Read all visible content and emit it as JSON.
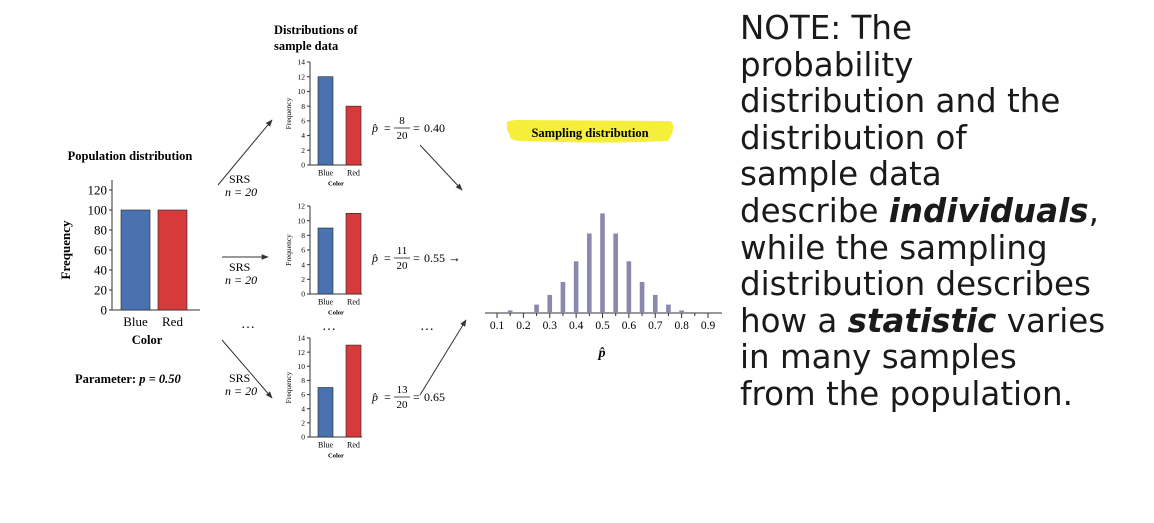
{
  "colors": {
    "blue": "#4a72b0",
    "red": "#d63a3a",
    "sampling": "#8a88ad",
    "highlight": "#f5ee3a",
    "axis": "#333333"
  },
  "population": {
    "title": "Population distribution",
    "ylabel": "Frequency",
    "xlabel": "Color",
    "parameter_label": "Parameter: ",
    "parameter_value": "p = 0.50"
  },
  "samples": {
    "title_line1": "Distributions of",
    "title_line2": "sample data",
    "srs_label": "SRS",
    "n_label": "n = 20",
    "ellipsis": "…",
    "phat_symbol": "p̂",
    "items": [
      {
        "num": "8",
        "den": "20",
        "result": "0.40",
        "arrow": ""
      },
      {
        "num": "11",
        "den": "20",
        "result": "0.55",
        "arrow": "→"
      },
      {
        "num": "13",
        "den": "20",
        "result": "0.65",
        "arrow": ""
      }
    ]
  },
  "sampling": {
    "title": "Sampling distribution",
    "xlabel": "p̂"
  },
  "chart_data": [
    {
      "type": "bar",
      "title": "Population distribution",
      "xlabel": "Color",
      "ylabel": "Frequency",
      "categories": [
        "Blue",
        "Red"
      ],
      "values": [
        100,
        100
      ],
      "ylim": [
        0,
        130
      ],
      "yticks": [
        "0",
        "20",
        "40",
        "60",
        "80",
        "100",
        "120"
      ]
    },
    {
      "type": "bar",
      "xlabel": "Color",
      "ylabel": "Frequency",
      "categories": [
        "Blue",
        "Red"
      ],
      "values": [
        12,
        8
      ],
      "ylim": [
        0,
        14
      ],
      "yticks": [
        "0",
        "2",
        "4",
        "6",
        "8",
        "10",
        "12",
        "14"
      ]
    },
    {
      "type": "bar",
      "xlabel": "Color",
      "ylabel": "Frequency",
      "categories": [
        "Blue",
        "Red"
      ],
      "values": [
        9,
        11
      ],
      "ylim": [
        0,
        12
      ],
      "yticks": [
        "0",
        "2",
        "4",
        "6",
        "8",
        "10",
        "12"
      ]
    },
    {
      "type": "bar",
      "xlabel": "Color",
      "ylabel": "Frequency",
      "categories": [
        "Blue",
        "Red"
      ],
      "values": [
        7,
        13
      ],
      "ylim": [
        0,
        14
      ],
      "yticks": [
        "0",
        "2",
        "4",
        "6",
        "8",
        "10",
        "12",
        "14"
      ]
    },
    {
      "type": "bar",
      "title": "Sampling distribution",
      "xlabel": "p̂",
      "x": [
        0.15,
        0.25,
        0.3,
        0.35,
        0.4,
        0.45,
        0.5,
        0.55,
        0.6,
        0.65,
        0.7,
        0.75,
        0.8
      ],
      "values": [
        0.4,
        1.3,
        2.8,
        4.8,
        8.0,
        12.3,
        15.4,
        12.3,
        8.0,
        4.8,
        2.8,
        1.3,
        0.4
      ],
      "xticks": [
        "0.1",
        "0.2",
        "0.3",
        "0.4",
        "0.5",
        "0.6",
        "0.7",
        "0.8",
        "0.9"
      ]
    }
  ],
  "note": {
    "lines": [
      [
        {
          "t": "NOTE:  The",
          "em": false
        }
      ],
      [
        {
          "t": "probability",
          "em": false
        }
      ],
      [
        {
          "t": "distribution and the",
          "em": false
        }
      ],
      [
        {
          "t": "distribution of",
          "em": false
        }
      ],
      [
        {
          "t": "sample data",
          "em": false
        }
      ],
      [
        {
          "t": "describe ",
          "em": false
        },
        {
          "t": "individuals",
          "em": true
        },
        {
          "t": ",",
          "em": false
        }
      ],
      [
        {
          "t": "while the sampling",
          "em": false
        }
      ],
      [
        {
          "t": "distribution describes",
          "em": false
        }
      ],
      [
        {
          "t": "how a ",
          "em": false
        },
        {
          "t": "statistic",
          "em": true
        },
        {
          "t": " varies",
          "em": false
        }
      ],
      [
        {
          "t": "in many samples",
          "em": false
        }
      ],
      [
        {
          "t": "from the population.",
          "em": false
        }
      ]
    ]
  }
}
